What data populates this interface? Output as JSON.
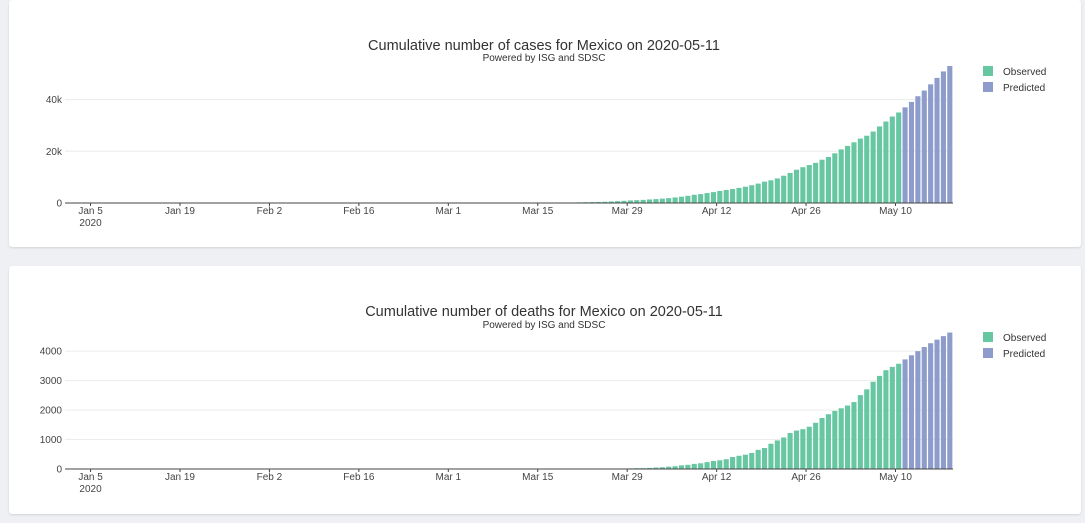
{
  "chart_data": [
    {
      "type": "bar",
      "title": "Cumulative number of cases for Mexico on 2020-05-11",
      "subtitle": "Powered by ISG and SDSC",
      "x_start": "2020-01-01",
      "x_ticks": [
        "Jan 5",
        "Jan 19",
        "Feb 2",
        "Feb 16",
        "Mar 1",
        "Mar 15",
        "Mar 29",
        "Apr 12",
        "Apr 26",
        "May 10"
      ],
      "x_tick_year": "2020",
      "y_ticks": [
        {
          "value": 0,
          "label": "0"
        },
        {
          "value": 20000,
          "label": "20k"
        },
        {
          "value": 40000,
          "label": "40k"
        }
      ],
      "ylim": [
        0,
        53000
      ],
      "legend": [
        "Observed",
        "Predicted"
      ],
      "legend_position": "top-right",
      "colors": {
        "observed": "#66c7a2",
        "predicted": "#8e9ccb"
      },
      "series": [
        {
          "name": "Observed",
          "start_date": "2020-02-28",
          "values": [
            1,
            2,
            4,
            5,
            5,
            5,
            5,
            6,
            7,
            7,
            7,
            8,
            12,
            12,
            26,
            41,
            53,
            82,
            93,
            118,
            164,
            203,
            251,
            316,
            367,
            405,
            475,
            585,
            717,
            848,
            993,
            1094,
            1215,
            1378,
            1510,
            1688,
            1890,
            2143,
            2439,
            2785,
            3181,
            3441,
            3844,
            4219,
            4661,
            5014,
            5399,
            5847,
            6297,
            6875,
            7497,
            8261,
            8772,
            9501,
            10544,
            11633,
            12872,
            13842,
            14677,
            15529,
            16752,
            17799,
            19224,
            20739,
            22088,
            23471,
            24905,
            26025,
            27634,
            29616,
            31522,
            33460,
            35022
          ]
        },
        {
          "name": "Predicted",
          "start_date": "2020-05-11",
          "values": [
            37000,
            39100,
            41300,
            43500,
            45900,
            48400,
            50900,
            53000
          ]
        }
      ]
    },
    {
      "type": "bar",
      "title": "Cumulative number of deaths for Mexico on 2020-05-11",
      "subtitle": "Powered by ISG and SDSC",
      "x_start": "2020-01-01",
      "x_ticks": [
        "Jan 5",
        "Jan 19",
        "Feb 2",
        "Feb 16",
        "Mar 1",
        "Mar 15",
        "Mar 29",
        "Apr 12",
        "Apr 26",
        "May 10"
      ],
      "x_tick_year": "2020",
      "y_ticks": [
        {
          "value": 0,
          "label": "0"
        },
        {
          "value": 1000,
          "label": "1000"
        },
        {
          "value": 2000,
          "label": "2000"
        },
        {
          "value": 3000,
          "label": "3000"
        },
        {
          "value": 4000,
          "label": "4000"
        }
      ],
      "ylim": [
        0,
        4650
      ],
      "legend": [
        "Observed",
        "Predicted"
      ],
      "legend_position": "top-right",
      "colors": {
        "observed": "#66c7a2",
        "predicted": "#8e9ccb"
      },
      "series": [
        {
          "name": "Observed",
          "start_date": "2020-03-20",
          "values": [
            1,
            2,
            2,
            4,
            5,
            6,
            8,
            12,
            16,
            20,
            28,
            29,
            37,
            50,
            60,
            79,
            94,
            125,
            141,
            174,
            194,
            233,
            273,
            296,
            332,
            406,
            449,
            486,
            546,
            650,
            712,
            857,
            970,
            1069,
            1221,
            1305,
            1351,
            1434,
            1569,
            1732,
            1859,
            1972,
            2061,
            2154,
            2271,
            2507,
            2704,
            2961,
            3160,
            3353,
            3465,
            3573
          ]
        },
        {
          "name": "Predicted",
          "start_date": "2020-05-11",
          "values": [
            3720,
            3860,
            4000,
            4140,
            4270,
            4390,
            4510,
            4630
          ]
        }
      ]
    }
  ]
}
